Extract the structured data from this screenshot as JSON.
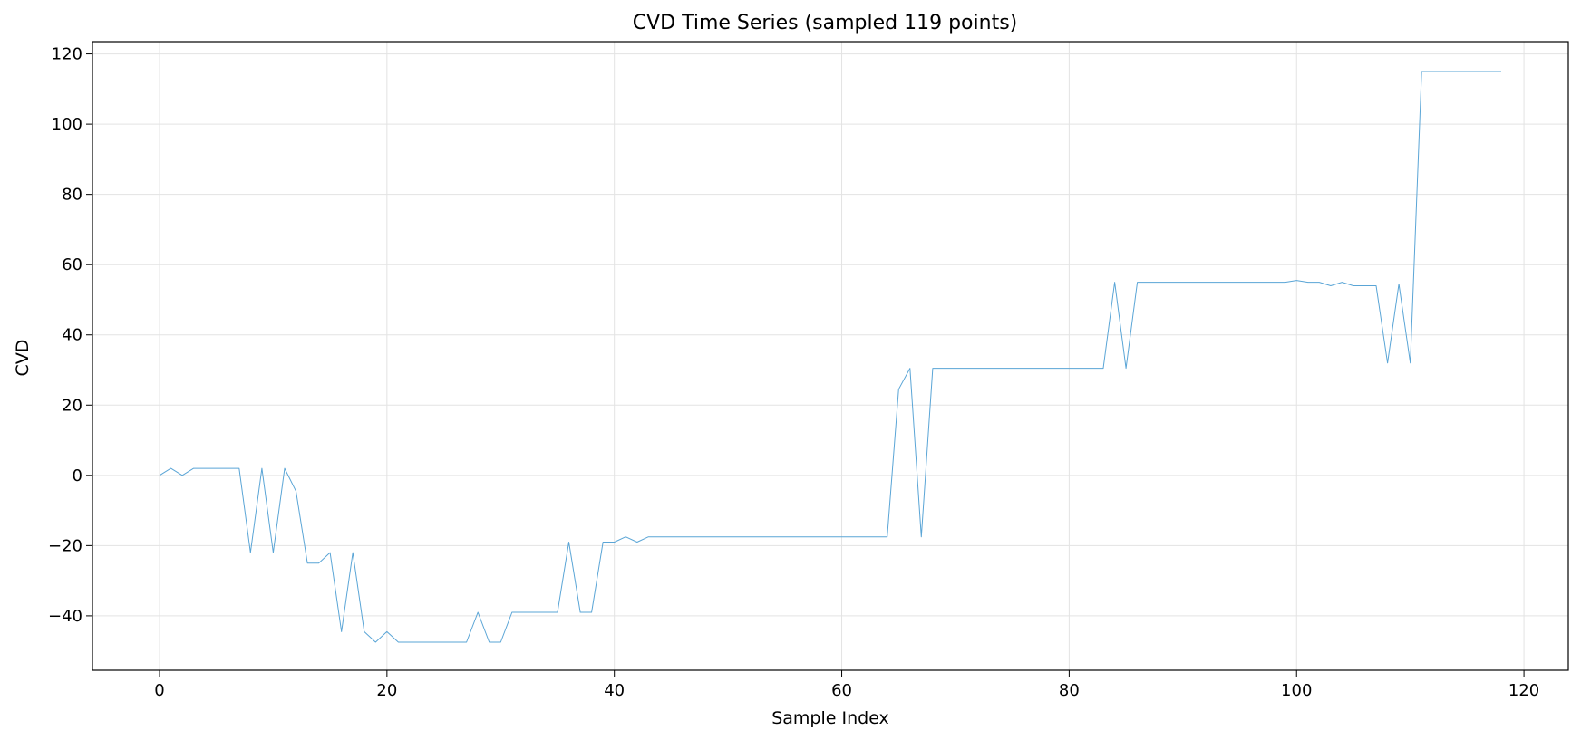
{
  "chart_data": {
    "type": "line",
    "title": "CVD Time Series (sampled 119 points)",
    "xlabel": "Sample Index",
    "ylabel": "CVD",
    "xlim": [
      -5.9,
      123.9
    ],
    "ylim": [
      -55.5,
      123.5
    ],
    "xticks": [
      0,
      20,
      40,
      60,
      80,
      100,
      120
    ],
    "yticks": [
      -40,
      -20,
      0,
      20,
      40,
      60,
      80,
      100,
      120
    ],
    "grid": true,
    "series": [
      {
        "color": "#5aa5d6",
        "x": [
          0,
          1,
          2,
          3,
          4,
          5,
          6,
          7,
          8,
          9,
          10,
          11,
          12,
          13,
          14,
          15,
          16,
          17,
          18,
          19,
          20,
          21,
          22,
          23,
          24,
          25,
          26,
          27,
          28,
          29,
          30,
          31,
          32,
          33,
          34,
          35,
          36,
          37,
          38,
          39,
          40,
          41,
          42,
          43,
          44,
          45,
          46,
          47,
          48,
          49,
          50,
          51,
          52,
          53,
          54,
          55,
          56,
          57,
          58,
          59,
          60,
          61,
          62,
          63,
          64,
          65,
          66,
          67,
          68,
          69,
          70,
          71,
          72,
          73,
          74,
          75,
          76,
          77,
          78,
          79,
          80,
          81,
          82,
          83,
          84,
          85,
          86,
          87,
          88,
          89,
          90,
          91,
          92,
          93,
          94,
          95,
          96,
          97,
          98,
          99,
          100,
          101,
          102,
          103,
          104,
          105,
          106,
          107,
          108,
          109,
          110,
          111,
          112,
          113,
          114,
          115,
          116,
          117,
          118
        ],
        "y": [
          0,
          2,
          0,
          2,
          2,
          2,
          2,
          2,
          -22,
          2,
          -22,
          2,
          -4.5,
          -25,
          -25,
          -22,
          -44.5,
          -22,
          -44.5,
          -47.5,
          -44.5,
          -47.5,
          -47.5,
          -47.5,
          -47.5,
          -47.5,
          -47.5,
          -47.5,
          -39,
          -47.5,
          -47.5,
          -39,
          -39,
          -39,
          -39,
          -39,
          -19,
          -39,
          -39,
          -19,
          -19,
          -17.5,
          -19,
          -17.5,
          -17.5,
          -17.5,
          -17.5,
          -17.5,
          -17.5,
          -17.5,
          -17.5,
          -17.5,
          -17.5,
          -17.5,
          -17.5,
          -17.5,
          -17.5,
          -17.5,
          -17.5,
          -17.5,
          -17.5,
          -17.5,
          -17.5,
          -17.5,
          -17.5,
          24.5,
          30.5,
          -17.5,
          30.5,
          30.5,
          30.5,
          30.5,
          30.5,
          30.5,
          30.5,
          30.5,
          30.5,
          30.5,
          30.5,
          30.5,
          30.5,
          30.5,
          30.5,
          30.5,
          55,
          30.5,
          55,
          55,
          55,
          55,
          55,
          55,
          55,
          55,
          55,
          55,
          55,
          55,
          55,
          55,
          55.5,
          55,
          55,
          54,
          55,
          54,
          54,
          54,
          32,
          54.5,
          32,
          115,
          115,
          115,
          115,
          115,
          115,
          115,
          115
        ]
      }
    ]
  }
}
